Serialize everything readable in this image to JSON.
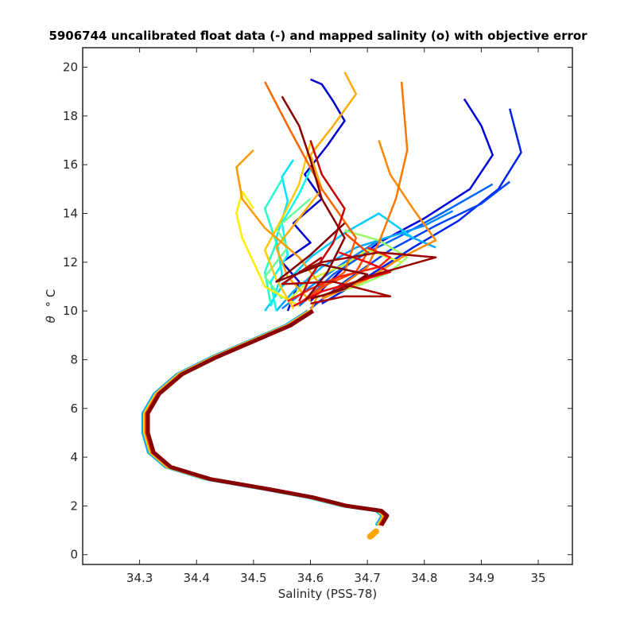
{
  "chart_data": {
    "type": "line",
    "title": "5906744 uncalibrated float data (-) and mapped salinity (o) with objective error",
    "xlabel": "Salinity (PSS-78)",
    "ylabel_symbol": "θ",
    "ylabel_unit": "° C",
    "xlim": [
      34.2,
      35.06
    ],
    "ylim": [
      -0.4,
      20.8
    ],
    "xticks": [
      "34.3",
      "34.4",
      "34.5",
      "34.6",
      "34.7",
      "34.8",
      "34.9",
      "35"
    ],
    "yticks": [
      "0",
      "2",
      "4",
      "6",
      "8",
      "10",
      "12",
      "14",
      "16",
      "18",
      "20"
    ],
    "grid": false,
    "colormap": "jet",
    "deep_profile": {
      "s": [
        34.72,
        34.73,
        34.72,
        34.66,
        34.6,
        34.52,
        34.42,
        34.35,
        34.32,
        34.31,
        34.31,
        34.33,
        34.37,
        34.43,
        34.5,
        34.56,
        34.6
      ],
      "t": [
        1.2,
        1.6,
        1.8,
        2.0,
        2.35,
        2.7,
        3.1,
        3.6,
        4.2,
        5.0,
        5.8,
        6.6,
        7.4,
        8.1,
        8.8,
        9.4,
        10.0
      ]
    },
    "mapped_salinity_points": {
      "color": "#ffa500",
      "s": [
        34.705,
        34.71,
        34.715,
        34.708,
        34.712
      ],
      "t": [
        0.75,
        0.85,
        0.95,
        0.8,
        0.9
      ]
    },
    "series": [
      {
        "color": "#0000cc",
        "s": [
          34.56,
          34.58,
          34.55,
          34.6,
          34.57,
          34.62,
          34.59,
          34.63,
          34.66,
          34.64,
          34.62,
          34.6
        ],
        "t": [
          10.0,
          11.2,
          12.0,
          12.8,
          13.6,
          14.6,
          15.6,
          16.8,
          17.8,
          18.6,
          19.3,
          19.5
        ]
      },
      {
        "color": "#0000dd",
        "s": [
          34.6,
          34.66,
          34.72,
          34.8,
          34.88,
          34.92,
          34.9,
          34.87
        ],
        "t": [
          10.4,
          11.8,
          12.8,
          13.8,
          15.0,
          16.4,
          17.6,
          18.7
        ]
      },
      {
        "color": "#0022ee",
        "s": [
          34.62,
          34.7,
          34.78,
          34.86,
          34.93,
          34.97,
          34.95
        ],
        "t": [
          10.3,
          11.4,
          12.6,
          13.7,
          15.0,
          16.5,
          18.3
        ]
      },
      {
        "color": "#0044ff",
        "s": [
          34.6,
          34.66,
          34.74,
          34.82,
          34.9,
          34.95
        ],
        "t": [
          10.1,
          11.2,
          12.5,
          13.5,
          14.4,
          15.3
        ]
      },
      {
        "color": "#0066ff",
        "s": [
          34.58,
          34.64,
          34.7,
          34.76,
          34.83,
          34.92
        ],
        "t": [
          10.2,
          11.5,
          12.4,
          13.1,
          14.0,
          15.2
        ]
      },
      {
        "color": "#0088ff",
        "s": [
          34.55,
          34.6,
          34.66,
          34.72,
          34.8,
          34.85
        ],
        "t": [
          10.1,
          11.0,
          12.0,
          12.9,
          13.5,
          14.1
        ]
      },
      {
        "color": "#00aaff",
        "s": [
          34.54,
          34.57,
          34.62,
          34.68,
          34.76,
          34.82
        ],
        "t": [
          10.0,
          10.8,
          11.8,
          12.6,
          13.2,
          12.6
        ]
      },
      {
        "color": "#00ccff",
        "s": [
          34.52,
          34.55,
          34.6,
          34.66,
          34.72,
          34.78
        ],
        "t": [
          10.0,
          11.0,
          12.2,
          13.2,
          14.0,
          13.0
        ]
      },
      {
        "color": "#00e5ff",
        "s": [
          34.53,
          34.55,
          34.54,
          34.56,
          34.55,
          34.57
        ],
        "t": [
          10.2,
          11.5,
          13.0,
          14.5,
          15.5,
          16.2
        ]
      },
      {
        "color": "#00ffee",
        "s": [
          34.54,
          34.53,
          34.56,
          34.55,
          34.58,
          34.6
        ],
        "t": [
          10.0,
          11.2,
          12.3,
          13.6,
          14.8,
          15.8
        ]
      },
      {
        "color": "#22ffcc",
        "s": [
          34.53,
          34.52,
          34.54,
          34.52,
          34.55
        ],
        "t": [
          10.3,
          11.6,
          12.8,
          14.2,
          15.4
        ]
      },
      {
        "color": "#66ff99",
        "s": [
          34.55,
          34.52,
          34.56,
          34.54,
          34.6
        ],
        "t": [
          10.5,
          11.4,
          12.6,
          13.4,
          14.6
        ]
      },
      {
        "color": "#99ff66",
        "s": [
          34.62,
          34.68,
          34.74,
          34.77,
          34.72,
          34.66
        ],
        "t": [
          10.6,
          11.0,
          11.6,
          12.2,
          12.9,
          13.3
        ]
      },
      {
        "color": "#ccff33",
        "s": [
          34.56,
          34.6,
          34.66,
          34.7,
          34.76
        ],
        "t": [
          10.4,
          11.3,
          11.9,
          12.5,
          12.0
        ]
      },
      {
        "color": "#ffee00",
        "s": [
          34.58,
          34.52,
          34.5,
          34.48,
          34.47,
          34.48,
          34.5
        ],
        "t": [
          10.2,
          11.0,
          12.0,
          13.0,
          14.0,
          14.9,
          14.2
        ]
      },
      {
        "color": "#ffcc00",
        "s": [
          34.57,
          34.54,
          34.52,
          34.55,
          34.58,
          34.6
        ],
        "t": [
          10.1,
          11.3,
          12.5,
          13.8,
          15.2,
          16.9
        ]
      },
      {
        "color": "#ffaa00",
        "s": [
          34.6,
          34.56,
          34.54,
          34.58,
          34.62,
          34.6,
          34.64,
          34.68,
          34.66
        ],
        "t": [
          10.4,
          11.4,
          12.6,
          13.8,
          15.0,
          16.4,
          17.6,
          18.9,
          19.8
        ]
      },
      {
        "color": "#ff9900",
        "s": [
          34.6,
          34.62,
          34.58,
          34.52,
          34.48,
          34.47,
          34.5
        ],
        "t": [
          10.0,
          11.0,
          12.2,
          13.4,
          14.6,
          15.9,
          16.6
        ]
      },
      {
        "color": "#ff8800",
        "s": [
          34.62,
          34.7,
          34.76,
          34.82,
          34.78,
          34.74,
          34.72
        ],
        "t": [
          10.5,
          11.3,
          12.2,
          12.9,
          14.2,
          15.6,
          17.0
        ]
      },
      {
        "color": "#ff7700",
        "s": [
          34.64,
          34.7,
          34.72,
          34.75,
          34.77,
          34.76
        ],
        "t": [
          10.8,
          11.8,
          12.8,
          14.6,
          16.6,
          19.4
        ]
      },
      {
        "color": "#ff6600",
        "s": [
          34.6,
          34.66,
          34.68,
          34.62,
          34.56,
          34.52
        ],
        "t": [
          10.6,
          11.6,
          13.0,
          15.0,
          17.6,
          19.4
        ]
      },
      {
        "color": "#ff4400",
        "s": [
          34.58,
          34.62,
          34.68,
          34.7,
          34.66
        ],
        "t": [
          10.3,
          11.0,
          11.6,
          12.4,
          13.2
        ]
      },
      {
        "color": "#ff2200",
        "s": [
          34.56,
          34.6,
          34.65,
          34.72,
          34.74,
          34.7
        ],
        "t": [
          10.4,
          10.9,
          11.4,
          11.8,
          12.2,
          12.6
        ]
      },
      {
        "color": "#ee0000",
        "s": [
          34.57,
          34.62,
          34.68,
          34.74,
          34.7,
          34.65
        ],
        "t": [
          10.2,
          10.8,
          11.2,
          11.6,
          12.0,
          12.4
        ]
      },
      {
        "color": "#cc0000",
        "s": [
          34.58,
          34.6,
          34.64,
          34.66,
          34.62,
          34.6
        ],
        "t": [
          10.4,
          11.4,
          12.8,
          14.2,
          15.6,
          17.0
        ]
      },
      {
        "color": "#aa0000",
        "s": [
          34.6,
          34.66,
          34.74,
          34.64,
          34.55,
          34.62
        ],
        "t": [
          10.3,
          10.6,
          10.6,
          11.2,
          11.1,
          12.2
        ]
      },
      {
        "color": "#990000",
        "s": [
          34.62,
          34.7,
          34.82,
          34.72,
          34.62,
          34.58
        ],
        "t": [
          10.6,
          11.4,
          12.2,
          12.4,
          12.0,
          11.6
        ]
      },
      {
        "color": "#880000",
        "s": [
          34.59,
          34.63,
          34.66,
          34.62,
          34.6,
          34.58,
          34.55
        ],
        "t": [
          10.4,
          11.6,
          13.0,
          14.6,
          16.2,
          17.6,
          18.8
        ]
      },
      {
        "color": "#800000",
        "s": [
          34.6,
          34.66,
          34.7,
          34.62,
          34.54,
          34.6,
          34.66
        ],
        "t": [
          10.5,
          10.9,
          11.5,
          11.9,
          11.2,
          12.3,
          13.6
        ]
      }
    ]
  }
}
